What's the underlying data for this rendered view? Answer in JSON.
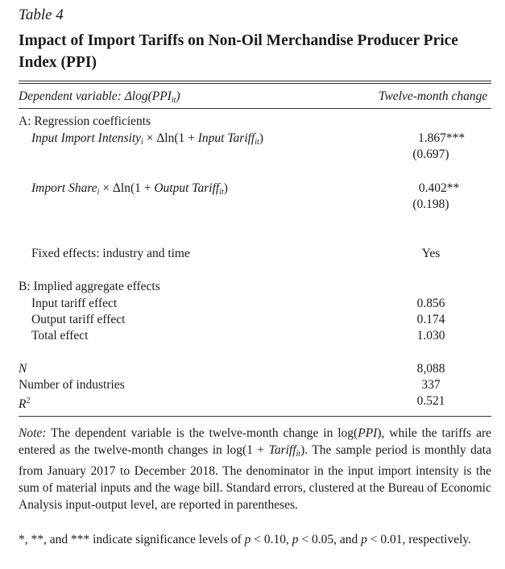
{
  "table": {
    "label": "Table 4",
    "title": "Impact of Import Tariffs on Non-Oil Merchandise Producer Price Index (PPI)",
    "dep_var_text": "Dependent variable: Δlog(PPI",
    "dep_var_sub": "it",
    "dep_var_close": ")",
    "col_header": "Twelve-month change"
  },
  "panel_a": {
    "heading": "A: Regression coefficients",
    "row1": {
      "label_a": "Input Import Intensity",
      "sub_i": "i",
      "label_b": " × Δln(1 + ",
      "label_c": "Input Tariff",
      "sub_it": "it",
      "label_d": ")",
      "coef": "1.867***",
      "se": "(0.697)"
    },
    "row2": {
      "label_a": "Import Share",
      "sub_i": "i",
      "label_b": " × Δln(1 + ",
      "label_c": "Output Tariff",
      "sub_it": "it",
      "label_d": ")",
      "coef": "0.402**",
      "se": "(0.198)"
    },
    "fixed_effects": {
      "label": "Fixed effects: industry and time",
      "value": "Yes"
    }
  },
  "panel_b": {
    "heading": "B: Implied aggregate effects",
    "rows": [
      {
        "label": "Input tariff effect",
        "value": "0.856"
      },
      {
        "label": "Output tariff effect",
        "value": "0.174"
      },
      {
        "label": "Total effect",
        "value": "1.030"
      }
    ]
  },
  "stats": {
    "n_label": "N",
    "n_value": "8,088",
    "industries_label": "Number of industries",
    "industries_value": "337",
    "r2_label": "R",
    "r2_sup": "2",
    "r2_value": "0.521"
  },
  "note": {
    "lead": "Note:",
    "p1": " The dependent variable is the twelve-month change in log(",
    "ppi": "PPI",
    "p2": "), while the tariffs are entered as the twelve-month changes in log(1 + ",
    "tariff": "Tariff",
    "tariff_sub": "it",
    "p3": "). The sample period is monthly data from January 2017 to December 2018. The denominator in the input import intensity is the sum of material inputs and the wage bill. Standard errors, clustered at the Bureau of Economic Analysis input-output level, are reported in parentheses.",
    "sig_a": "*, **, and *** indicate significance levels of ",
    "sig_p1": "p",
    "sig_b": " < 0.10, ",
    "sig_p2": "p",
    "sig_c": " < 0.05, and ",
    "sig_p3": "p",
    "sig_d": " < 0.01, respectively."
  }
}
